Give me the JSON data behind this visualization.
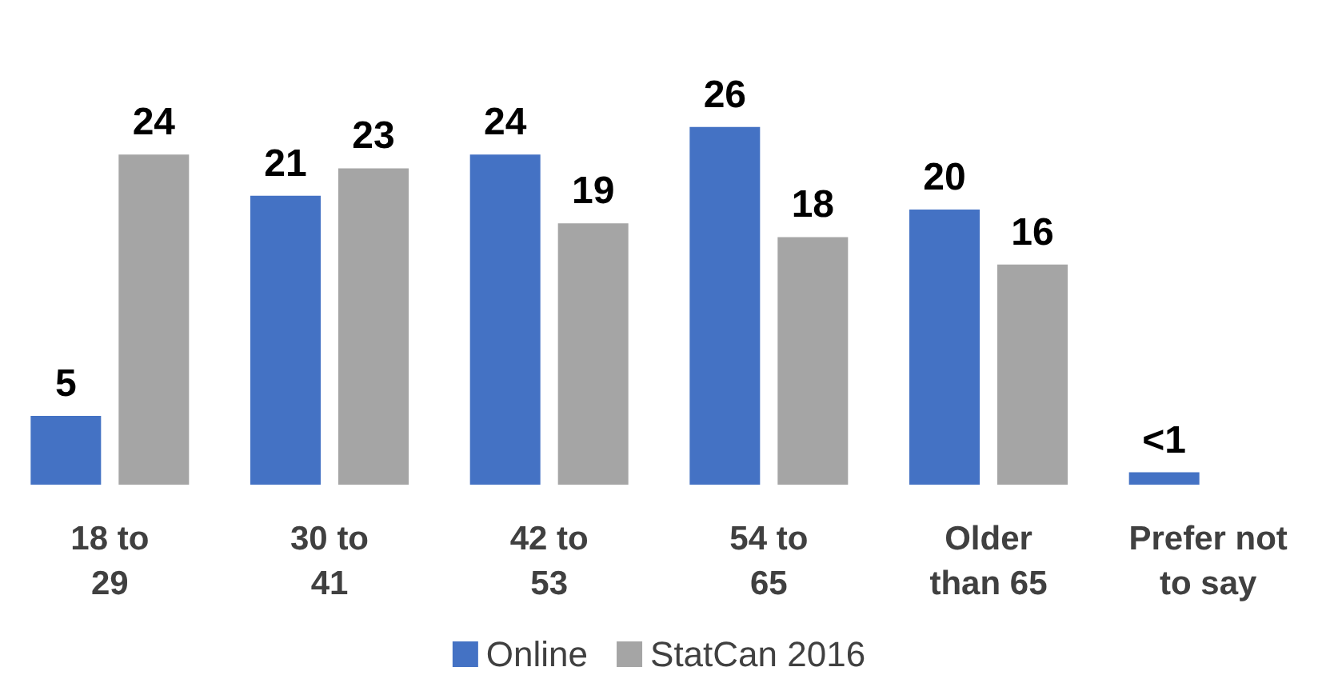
{
  "chart_data": {
    "type": "bar",
    "categories": [
      "18 to 29",
      "30 to 41",
      "42 to 53",
      "54 to 65",
      "Older than 65",
      "Prefer not to say"
    ],
    "series": [
      {
        "name": "Online",
        "color": "#4472c4",
        "values": [
          5,
          21,
          24,
          26,
          20,
          0.9
        ],
        "value_labels": [
          "5",
          "21",
          "24",
          "26",
          "20",
          "<1"
        ]
      },
      {
        "name": "StatCan 2016",
        "color": "#a5a5a5",
        "values": [
          24,
          23,
          19,
          18,
          16,
          null
        ],
        "value_labels": [
          "24",
          "23",
          "19",
          "18",
          "16",
          null
        ]
      }
    ],
    "legend": "bottom"
  }
}
